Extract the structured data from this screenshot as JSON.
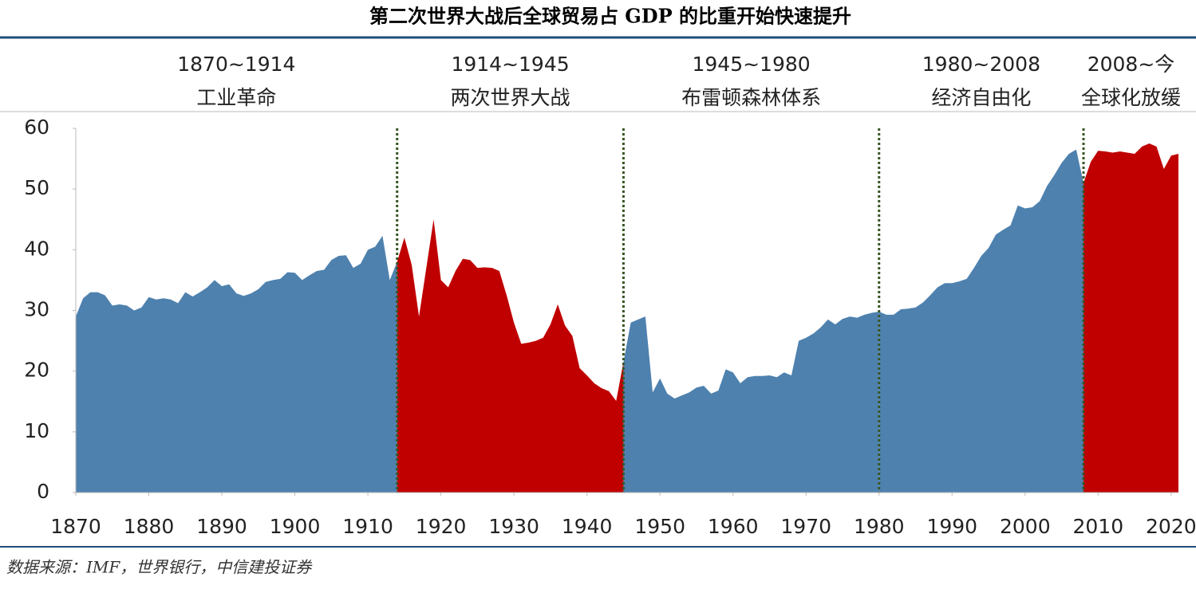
{
  "chart_data": {
    "type": "area",
    "title": "第二次世界大战后全球贸易占 GDP 的比重开始快速提升",
    "source": "数据来源：IMF，世界银行，中信建投证券",
    "x": [
      1870,
      1871,
      1872,
      1873,
      1874,
      1875,
      1876,
      1877,
      1878,
      1879,
      1880,
      1881,
      1882,
      1883,
      1884,
      1885,
      1886,
      1887,
      1888,
      1889,
      1890,
      1891,
      1892,
      1893,
      1894,
      1895,
      1896,
      1897,
      1898,
      1899,
      1900,
      1901,
      1902,
      1903,
      1904,
      1905,
      1906,
      1907,
      1908,
      1909,
      1910,
      1911,
      1912,
      1913,
      1914,
      1915,
      1916,
      1917,
      1918,
      1919,
      1920,
      1921,
      1922,
      1923,
      1924,
      1925,
      1926,
      1927,
      1928,
      1929,
      1930,
      1931,
      1932,
      1933,
      1934,
      1935,
      1936,
      1937,
      1938,
      1939,
      1940,
      1941,
      1942,
      1943,
      1944,
      1945,
      1946,
      1947,
      1948,
      1949,
      1950,
      1951,
      1952,
      1953,
      1954,
      1955,
      1956,
      1957,
      1958,
      1959,
      1960,
      1961,
      1962,
      1963,
      1964,
      1965,
      1966,
      1967,
      1968,
      1969,
      1970,
      1971,
      1972,
      1973,
      1974,
      1975,
      1976,
      1977,
      1978,
      1979,
      1980,
      1981,
      1982,
      1983,
      1984,
      1985,
      1986,
      1987,
      1988,
      1989,
      1990,
      1991,
      1992,
      1993,
      1994,
      1995,
      1996,
      1997,
      1998,
      1999,
      2000,
      2001,
      2002,
      2003,
      2004,
      2005,
      2006,
      2007,
      2008,
      2009,
      2010,
      2011,
      2012,
      2013,
      2014,
      2015,
      2016,
      2017,
      2018,
      2019,
      2020,
      2021
    ],
    "values": [
      29,
      32,
      33,
      33,
      32.5,
      30.8,
      31,
      30.8,
      30,
      30.5,
      32.2,
      31.8,
      32,
      31.8,
      31.2,
      33,
      32.3,
      33,
      33.8,
      35,
      34,
      34.3,
      32.8,
      32.4,
      32.8,
      33.5,
      34.7,
      35,
      35.2,
      36.3,
      36.2,
      35,
      35.8,
      36.5,
      36.7,
      38.3,
      39,
      39.1,
      37,
      37.7,
      40,
      40.5,
      42.3,
      35,
      38,
      42,
      37.5,
      29,
      37,
      45,
      35,
      33.8,
      36.5,
      38.5,
      38.3,
      37,
      37.1,
      37,
      36.5,
      32.5,
      28,
      24.5,
      24.7,
      25,
      25.5,
      27.7,
      31,
      27.5,
      25.8,
      20.5,
      19.3,
      18,
      17.2,
      16.7,
      15.1,
      21.5,
      28,
      28.5,
      29,
      16.5,
      18.8,
      16.3,
      15.5,
      16,
      16.5,
      17.3,
      17.6,
      16.3,
      16.8,
      20.3,
      19.8,
      18,
      19,
      19.2,
      19.2,
      19.3,
      19,
      19.8,
      19.3,
      25,
      25.5,
      26.2,
      27.2,
      28.5,
      27.7,
      28.6,
      29,
      28.8,
      29.3,
      29.6,
      29.8,
      29.3,
      29.3,
      30.2,
      30.3,
      30.5,
      31.3,
      32.5,
      33.8,
      34.5,
      34.5,
      34.8,
      35.2,
      37,
      39,
      40.3,
      42.5,
      43.3,
      44,
      47.3,
      46.8,
      47,
      48,
      50.5,
      52.3,
      54.3,
      55.8,
      56.5,
      51,
      54.5,
      56.3,
      56.2,
      56,
      56.2,
      56,
      55.8,
      57,
      57.5,
      57,
      53.3,
      55.5,
      55.8
    ],
    "periods": [
      {
        "label": "1870~1914",
        "sublabel": "工业革命",
        "start": 1870,
        "end": 1914,
        "color": "#4e81ae"
      },
      {
        "label": "1914~1945",
        "sublabel": "两次世界大战",
        "start": 1914,
        "end": 1945,
        "color": "#c00000"
      },
      {
        "label": "1945~1980",
        "sublabel": "布雷顿森林体系",
        "start": 1945,
        "end": 1980,
        "color": "#4e81ae"
      },
      {
        "label": "1980~2008",
        "sublabel": "经济自由化",
        "start": 1980,
        "end": 2008,
        "color": "#4e81ae"
      },
      {
        "label": "2008~今",
        "sublabel": "全球化放缓",
        "start": 2008,
        "end": 2021,
        "color": "#c00000"
      }
    ],
    "divider_color": "#375623",
    "xlim": [
      1870,
      2021
    ],
    "xticks": [
      1870,
      1880,
      1890,
      1900,
      1910,
      1920,
      1930,
      1940,
      1950,
      1960,
      1970,
      1980,
      1990,
      2000,
      2010,
      2020
    ],
    "ylim": [
      0,
      60
    ],
    "yticks": [
      0,
      10,
      20,
      30,
      40,
      50,
      60
    ]
  }
}
